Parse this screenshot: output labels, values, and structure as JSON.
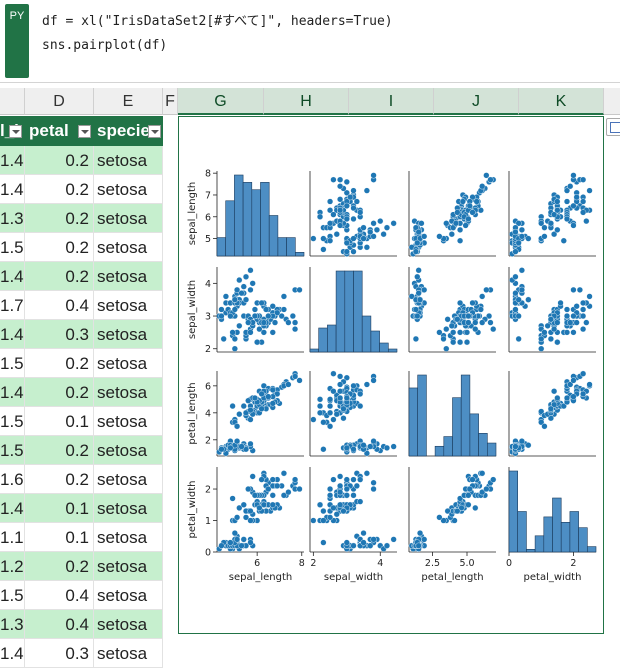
{
  "formula": {
    "badge": "PY",
    "line1": "df = xl(\"IrisDataSet2[#すべて]\", headers=True)",
    "line2": "sns.pairplot(df)"
  },
  "columns": [
    "D",
    "E",
    "F",
    "G",
    "H",
    "I",
    "J",
    "K"
  ],
  "table": {
    "headers": [
      "l_l",
      "petal",
      "specie"
    ],
    "rows": [
      [
        "1.4",
        "0.2",
        "setosa"
      ],
      [
        "1.4",
        "0.2",
        "setosa"
      ],
      [
        "1.3",
        "0.2",
        "setosa"
      ],
      [
        "1.5",
        "0.2",
        "setosa"
      ],
      [
        "1.4",
        "0.2",
        "setosa"
      ],
      [
        "1.7",
        "0.4",
        "setosa"
      ],
      [
        "1.4",
        "0.3",
        "setosa"
      ],
      [
        "1.5",
        "0.2",
        "setosa"
      ],
      [
        "1.4",
        "0.2",
        "setosa"
      ],
      [
        "1.5",
        "0.1",
        "setosa"
      ],
      [
        "1.5",
        "0.2",
        "setosa"
      ],
      [
        "1.6",
        "0.2",
        "setosa"
      ],
      [
        "1.4",
        "0.1",
        "setosa"
      ],
      [
        "1.1",
        "0.1",
        "setosa"
      ],
      [
        "1.2",
        "0.2",
        "setosa"
      ],
      [
        "1.5",
        "0.4",
        "setosa"
      ],
      [
        "1.3",
        "0.4",
        "setosa"
      ],
      [
        "1.4",
        "0.3",
        "setosa"
      ]
    ]
  },
  "chart_data": {
    "type": "scatter",
    "variables": [
      "sepal_length",
      "sepal_width",
      "petal_length",
      "petal_width"
    ],
    "ranges": {
      "sepal_length": [
        4.2,
        8.1
      ],
      "sepal_width": [
        1.9,
        4.5
      ],
      "petal_length": [
        0.8,
        7.1
      ],
      "petal_width": [
        0,
        2.7
      ]
    },
    "yticks": {
      "sepal_length": [
        5,
        6,
        7,
        8
      ],
      "sepal_width": [
        2,
        3,
        4
      ],
      "petal_length": [
        2,
        4,
        6
      ],
      "petal_width": [
        0,
        1,
        2
      ]
    },
    "xticks": {
      "sepal_length": [
        6,
        8
      ],
      "sepal_width": [
        2,
        4
      ],
      "petal_length": [
        2.5,
        5.0
      ],
      "petal_width": [
        0,
        2
      ]
    },
    "color": "#1f77b4",
    "samples": [
      [
        5.1,
        3.5,
        1.4,
        0.2
      ],
      [
        4.9,
        3.0,
        1.4,
        0.2
      ],
      [
        4.7,
        3.2,
        1.3,
        0.2
      ],
      [
        4.6,
        3.1,
        1.5,
        0.2
      ],
      [
        5.0,
        3.6,
        1.4,
        0.2
      ],
      [
        5.4,
        3.9,
        1.7,
        0.4
      ],
      [
        4.6,
        3.4,
        1.4,
        0.3
      ],
      [
        5.0,
        3.4,
        1.5,
        0.2
      ],
      [
        4.4,
        2.9,
        1.4,
        0.2
      ],
      [
        4.9,
        3.1,
        1.5,
        0.1
      ],
      [
        5.4,
        3.7,
        1.5,
        0.2
      ],
      [
        4.8,
        3.4,
        1.6,
        0.2
      ],
      [
        4.8,
        3.0,
        1.4,
        0.1
      ],
      [
        4.3,
        3.0,
        1.1,
        0.1
      ],
      [
        5.8,
        4.0,
        1.2,
        0.2
      ],
      [
        5.7,
        4.4,
        1.5,
        0.4
      ],
      [
        5.4,
        3.9,
        1.3,
        0.4
      ],
      [
        5.1,
        3.5,
        1.4,
        0.3
      ],
      [
        5.7,
        3.8,
        1.7,
        0.3
      ],
      [
        5.1,
        3.8,
        1.5,
        0.3
      ],
      [
        5.4,
        3.4,
        1.7,
        0.2
      ],
      [
        5.1,
        3.7,
        1.5,
        0.4
      ],
      [
        4.6,
        3.6,
        1.0,
        0.2
      ],
      [
        5.1,
        3.3,
        1.7,
        0.5
      ],
      [
        4.8,
        3.4,
        1.9,
        0.2
      ],
      [
        5.0,
        3.0,
        1.6,
        0.2
      ],
      [
        5.0,
        3.4,
        1.6,
        0.4
      ],
      [
        5.2,
        3.5,
        1.5,
        0.2
      ],
      [
        5.2,
        3.4,
        1.4,
        0.2
      ],
      [
        4.7,
        3.2,
        1.6,
        0.2
      ],
      [
        4.8,
        3.1,
        1.6,
        0.2
      ],
      [
        5.4,
        3.4,
        1.5,
        0.4
      ],
      [
        5.2,
        4.1,
        1.5,
        0.1
      ],
      [
        5.5,
        4.2,
        1.4,
        0.2
      ],
      [
        4.9,
        3.1,
        1.5,
        0.2
      ],
      [
        5.0,
        3.2,
        1.2,
        0.2
      ],
      [
        5.5,
        3.5,
        1.3,
        0.2
      ],
      [
        4.4,
        3.0,
        1.3,
        0.2
      ],
      [
        5.1,
        3.4,
        1.5,
        0.2
      ],
      [
        5.0,
        3.5,
        1.3,
        0.3
      ],
      [
        4.5,
        2.3,
        1.3,
        0.3
      ],
      [
        4.4,
        3.2,
        1.3,
        0.2
      ],
      [
        5.0,
        3.5,
        1.6,
        0.6
      ],
      [
        5.1,
        3.8,
        1.9,
        0.4
      ],
      [
        4.8,
        3.0,
        1.4,
        0.3
      ],
      [
        5.3,
        3.7,
        1.5,
        0.2
      ],
      [
        7.0,
        3.2,
        4.7,
        1.4
      ],
      [
        6.4,
        3.2,
        4.5,
        1.5
      ],
      [
        6.9,
        3.1,
        4.9,
        1.5
      ],
      [
        5.5,
        2.3,
        4.0,
        1.3
      ],
      [
        6.5,
        2.8,
        4.6,
        1.5
      ],
      [
        5.7,
        2.8,
        4.5,
        1.3
      ],
      [
        6.3,
        3.3,
        4.7,
        1.6
      ],
      [
        4.9,
        2.4,
        3.3,
        1.0
      ],
      [
        6.6,
        2.9,
        4.6,
        1.3
      ],
      [
        5.2,
        2.7,
        3.9,
        1.4
      ],
      [
        5.0,
        2.0,
        3.5,
        1.0
      ],
      [
        5.9,
        3.0,
        4.2,
        1.5
      ],
      [
        6.0,
        2.2,
        4.0,
        1.0
      ],
      [
        6.1,
        2.9,
        4.7,
        1.4
      ],
      [
        5.6,
        2.9,
        3.6,
        1.3
      ],
      [
        6.7,
        3.1,
        4.4,
        1.4
      ],
      [
        5.8,
        2.7,
        4.1,
        1.0
      ],
      [
        6.2,
        2.2,
        4.5,
        1.5
      ],
      [
        5.9,
        3.2,
        4.8,
        1.8
      ],
      [
        6.1,
        2.8,
        4.0,
        1.3
      ],
      [
        6.3,
        2.5,
        4.9,
        1.5
      ],
      [
        6.4,
        2.9,
        4.3,
        1.3
      ],
      [
        6.8,
        2.8,
        4.8,
        1.4
      ],
      [
        6.0,
        2.9,
        4.5,
        1.5
      ],
      [
        5.7,
        2.6,
        3.5,
        1.0
      ],
      [
        5.5,
        2.4,
        3.8,
        1.1
      ],
      [
        5.8,
        2.7,
        3.9,
        1.2
      ],
      [
        5.4,
        3.0,
        4.5,
        1.5
      ],
      [
        6.0,
        3.4,
        4.5,
        1.6
      ],
      [
        6.7,
        3.1,
        4.7,
        1.5
      ],
      [
        5.6,
        3.0,
        4.1,
        1.3
      ],
      [
        5.5,
        2.5,
        4.0,
        1.3
      ],
      [
        6.1,
        3.0,
        4.6,
        1.4
      ],
      [
        5.0,
        2.3,
        3.3,
        1.0
      ],
      [
        5.7,
        2.9,
        4.2,
        1.3
      ],
      [
        6.2,
        2.9,
        4.3,
        1.3
      ],
      [
        5.1,
        2.5,
        3.0,
        1.1
      ],
      [
        6.3,
        3.3,
        6.0,
        2.5
      ],
      [
        5.8,
        2.7,
        5.1,
        1.9
      ],
      [
        7.1,
        3.0,
        5.9,
        2.1
      ],
      [
        6.3,
        2.9,
        5.6,
        1.8
      ],
      [
        6.5,
        3.0,
        5.8,
        2.2
      ],
      [
        7.6,
        3.0,
        6.6,
        2.1
      ],
      [
        4.9,
        2.5,
        4.5,
        1.7
      ],
      [
        7.3,
        2.9,
        6.3,
        1.8
      ],
      [
        6.7,
        2.5,
        5.8,
        1.8
      ],
      [
        7.2,
        3.6,
        6.1,
        2.5
      ],
      [
        6.5,
        3.2,
        5.1,
        2.0
      ],
      [
        6.4,
        2.7,
        5.3,
        1.9
      ],
      [
        6.8,
        3.0,
        5.5,
        2.1
      ],
      [
        5.7,
        2.5,
        5.0,
        2.0
      ],
      [
        5.8,
        2.8,
        5.1,
        2.4
      ],
      [
        6.4,
        3.2,
        5.3,
        2.3
      ],
      [
        7.7,
        3.8,
        6.7,
        2.2
      ],
      [
        7.7,
        2.6,
        6.9,
        2.3
      ],
      [
        6.0,
        2.2,
        5.0,
        1.5
      ],
      [
        6.9,
        3.2,
        5.7,
        2.3
      ],
      [
        5.6,
        2.8,
        4.9,
        2.0
      ],
      [
        7.7,
        2.8,
        6.7,
        2.0
      ],
      [
        6.3,
        2.7,
        4.9,
        1.8
      ],
      [
        6.7,
        3.3,
        5.7,
        2.1
      ],
      [
        7.2,
        3.2,
        6.0,
        1.8
      ],
      [
        6.2,
        2.8,
        4.8,
        1.8
      ],
      [
        6.1,
        3.0,
        4.9,
        1.8
      ],
      [
        6.4,
        2.8,
        5.6,
        2.1
      ],
      [
        7.4,
        2.8,
        6.1,
        1.9
      ],
      [
        7.9,
        3.8,
        6.4,
        2.0
      ],
      [
        6.3,
        2.8,
        5.1,
        1.5
      ],
      [
        6.1,
        2.6,
        5.6,
        1.4
      ],
      [
        6.3,
        3.4,
        5.6,
        2.4
      ],
      [
        6.0,
        3.0,
        4.8,
        1.8
      ],
      [
        6.9,
        3.1,
        5.4,
        2.1
      ],
      [
        6.7,
        3.0,
        5.2,
        2.3
      ],
      [
        6.5,
        3.0,
        5.2,
        2.0
      ],
      [
        6.2,
        3.4,
        5.4,
        2.3
      ],
      [
        5.9,
        3.0,
        5.1,
        1.8
      ]
    ]
  }
}
